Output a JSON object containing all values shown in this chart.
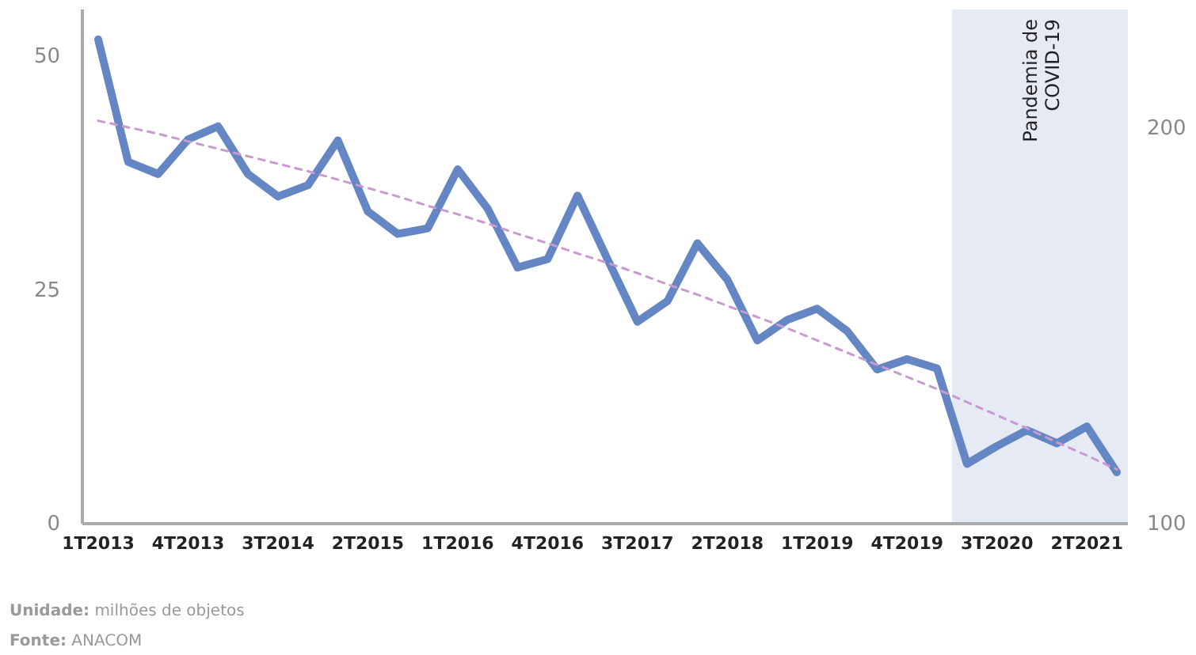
{
  "chart_data": {
    "type": "line",
    "categories": [
      "1T2013",
      null,
      null,
      "4T2013",
      null,
      null,
      "3T2014",
      null,
      null,
      "2T2015",
      null,
      null,
      "1T2016",
      null,
      null,
      "4T2016",
      null,
      null,
      "3T2017",
      null,
      null,
      "2T2018",
      null,
      null,
      "1T2019",
      null,
      null,
      "4T2019",
      null,
      null,
      "3T2020",
      null,
      null,
      "2T2021",
      null
    ],
    "series": [
      {
        "color": "#6586c4",
        "line_style": "solid",
        "values": [
          51.8,
          38.7,
          37.4,
          41.1,
          42.5,
          37.4,
          35.0,
          36.2,
          41.0,
          33.4,
          31.0,
          31.6,
          37.9,
          33.7,
          27.4,
          28.3,
          35.1,
          28.3,
          21.6,
          23.8,
          30.0,
          26.1,
          19.6,
          21.8,
          23.0,
          20.6,
          16.5,
          17.6,
          16.6,
          6.4,
          8.3,
          10.0,
          8.6,
          10.4,
          5.5
        ]
      },
      {
        "color": "#c99ad0",
        "line_style": "dashed",
        "values": [
          43.1,
          42.4,
          41.7,
          40.9,
          40.1,
          39.3,
          38.5,
          37.7,
          36.8,
          35.9,
          35.0,
          34.0,
          33.1,
          32.1,
          31.0,
          30.0,
          28.9,
          27.9,
          26.8,
          25.6,
          24.5,
          23.3,
          22.1,
          20.9,
          19.6,
          18.3,
          17.0,
          15.7,
          14.4,
          13.0,
          11.6,
          10.2,
          8.7,
          7.3,
          5.8
        ]
      }
    ],
    "ylim": [
      0,
      55
    ],
    "yticks": [
      0,
      25,
      50
    ],
    "y2lim": [
      100,
      230
    ],
    "y2ticks": [
      100,
      200
    ],
    "grid": false,
    "annotations": [
      "Pandemia de COVID-19",
      "Unidade: milhões de objetos",
      "Fonte: ANACOM"
    ]
  }
}
